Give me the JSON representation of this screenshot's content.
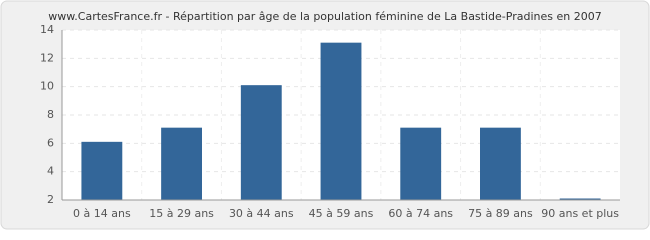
{
  "chart_data": {
    "type": "bar",
    "title": "www.CartesFrance.fr - Répartition par âge de la population féminine de La Bastide-Pradines en 2007",
    "categories": [
      "0 à 14 ans",
      "15 à 29 ans",
      "30 à 44 ans",
      "45 à 59 ans",
      "60 à 74 ans",
      "75 à 89 ans",
      "90 ans et plus"
    ],
    "values": [
      6,
      7,
      10,
      13,
      7,
      7,
      2
    ],
    "color": "#336699",
    "ylim": [
      2,
      14
    ],
    "yticks": [
      2,
      4,
      6,
      8,
      10,
      12,
      14
    ],
    "grid": true
  }
}
